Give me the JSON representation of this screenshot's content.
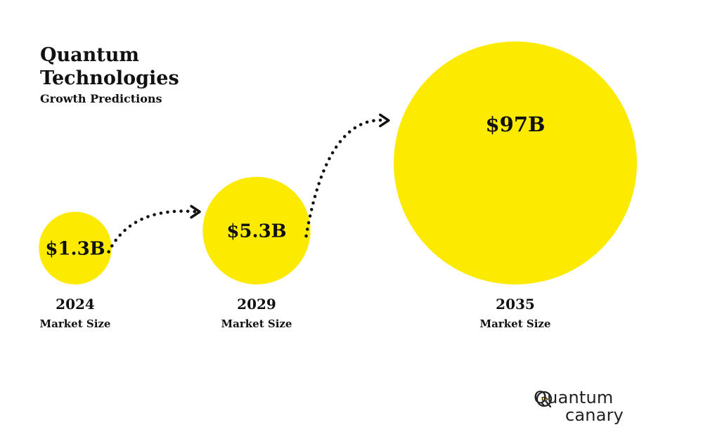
{
  "header": {
    "title_lines": [
      "Quantum",
      "Technologies"
    ],
    "subtitle": "Growth Predictions"
  },
  "chart_data": {
    "type": "bubble",
    "value_unit": "USD billions",
    "points": [
      {
        "year": "2024",
        "value": 1.3,
        "value_label": "$1.3B",
        "caption": "Market Size"
      },
      {
        "year": "2029",
        "value": 5.3,
        "value_label": "$5.3B",
        "caption": "Market Size"
      },
      {
        "year": "2035",
        "value": 97,
        "value_label": "$97B",
        "caption": "Market Size"
      }
    ],
    "bubble_color": "#FCEB00",
    "connector": "dotted-arrow"
  },
  "logo": {
    "line1": "Quantum",
    "line2": "canary",
    "mark_icon": "canary-q-icon"
  }
}
